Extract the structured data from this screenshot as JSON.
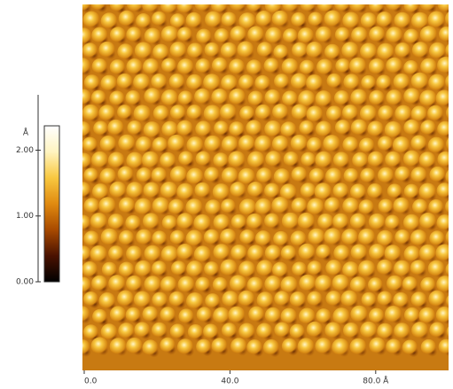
{
  "chart_data": {
    "type": "image",
    "xlim": [
      0,
      100
    ],
    "xticks": [
      {
        "value": 0,
        "label": "0.0"
      },
      {
        "value": 40,
        "label": "40.0"
      },
      {
        "value": 80,
        "label": "80.0 Å"
      }
    ],
    "colormap": [
      "#000000",
      "#4a1200",
      "#a84a00",
      "#e08a10",
      "#f8c840",
      "#fff4c0",
      "#ffffff"
    ],
    "colorbar": {
      "label": "Å",
      "lim": [
        0,
        2.37
      ],
      "ticks": [
        {
          "value": 0,
          "label": "0.00"
        },
        {
          "value": 1,
          "label": "1.00"
        },
        {
          "value": 2,
          "label": "2.00"
        }
      ]
    }
  }
}
